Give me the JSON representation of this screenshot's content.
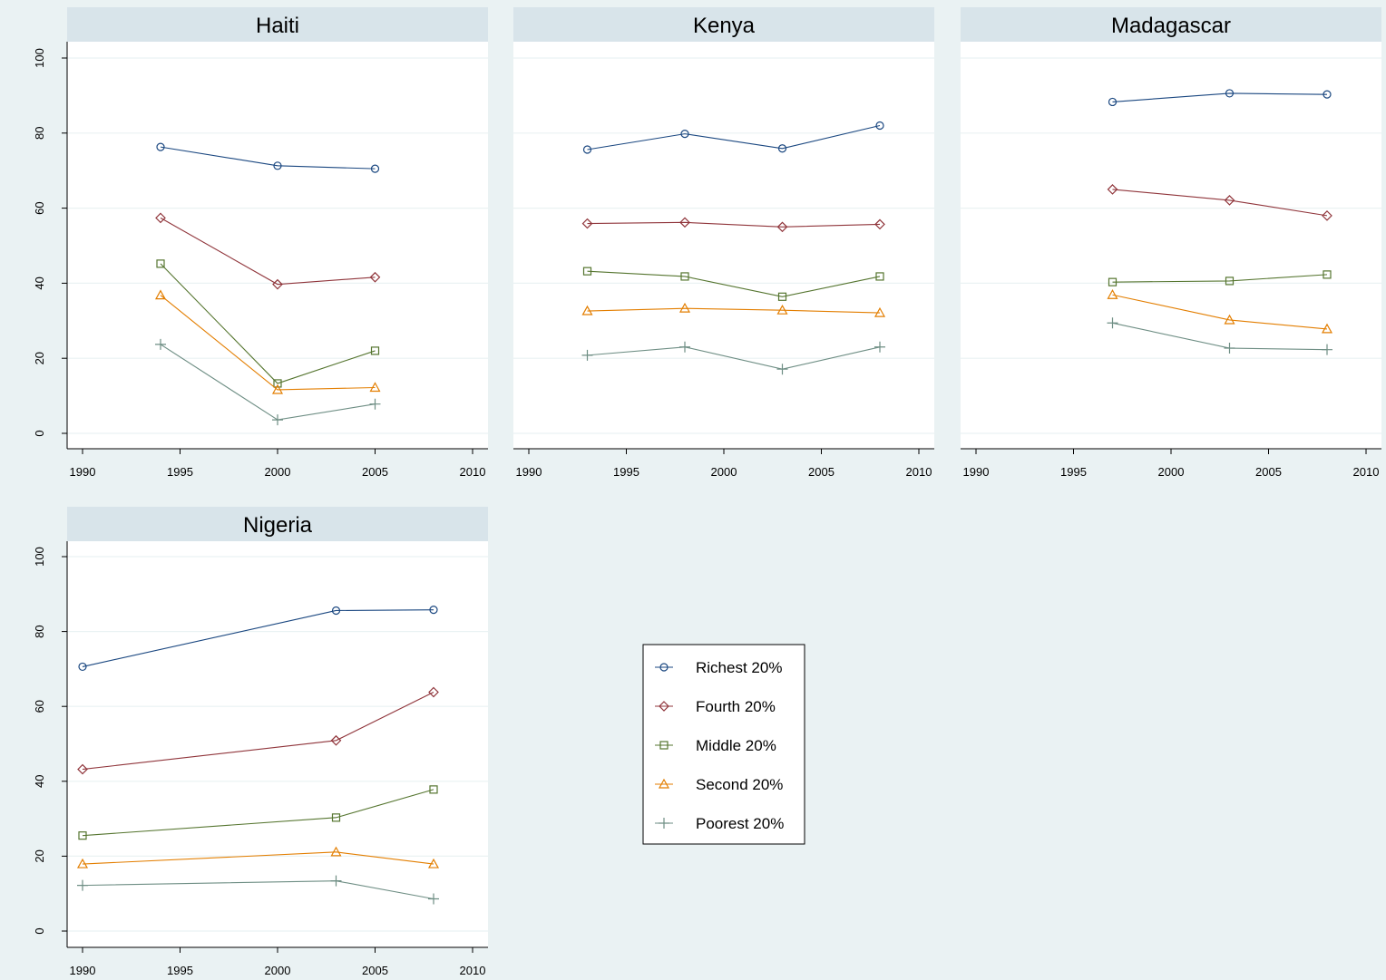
{
  "chart_data": {
    "type": "line",
    "layout": "small-multiples",
    "xlim": [
      1990,
      2010
    ],
    "ylim": [
      0,
      100
    ],
    "xticks": [
      1990,
      1995,
      2000,
      2005,
      2010
    ],
    "yticks": [
      0,
      20,
      40,
      60,
      80,
      100
    ],
    "grid": true,
    "legend_position": "bottom-center",
    "series_styles": [
      {
        "name": "Richest 20%",
        "color": "#1a4780",
        "marker": "circle"
      },
      {
        "name": "Fourth 20%",
        "color": "#90353b",
        "marker": "diamond"
      },
      {
        "name": "Middle 20%",
        "color": "#55752f",
        "marker": "square"
      },
      {
        "name": "Second 20%",
        "color": "#e37e00",
        "marker": "triangle"
      },
      {
        "name": "Poorest 20%",
        "color": "#6e8e84",
        "marker": "plus"
      }
    ],
    "panels": [
      {
        "title": "Haiti",
        "series": [
          {
            "name": "Richest 20%",
            "x": [
              1994,
              2000,
              2005
            ],
            "y": [
              76.3,
              71.3,
              70.5
            ]
          },
          {
            "name": "Fourth 20%",
            "x": [
              1994,
              2000,
              2005
            ],
            "y": [
              57.4,
              39.7,
              41.6
            ]
          },
          {
            "name": "Middle 20%",
            "x": [
              1994,
              2000,
              2005
            ],
            "y": [
              45.2,
              13.3,
              22.0
            ]
          },
          {
            "name": "Second 20%",
            "x": [
              1994,
              2000,
              2005
            ],
            "y": [
              36.8,
              11.6,
              12.2
            ]
          },
          {
            "name": "Poorest 20%",
            "x": [
              1994,
              2000,
              2005
            ],
            "y": [
              23.7,
              3.6,
              7.8
            ]
          }
        ]
      },
      {
        "title": "Kenya",
        "series": [
          {
            "name": "Richest 20%",
            "x": [
              1993,
              1998,
              2003,
              2008
            ],
            "y": [
              75.6,
              79.8,
              75.9,
              82.0
            ]
          },
          {
            "name": "Fourth 20%",
            "x": [
              1993,
              1998,
              2003,
              2008
            ],
            "y": [
              55.9,
              56.2,
              55.0,
              55.7
            ]
          },
          {
            "name": "Middle 20%",
            "x": [
              1993,
              1998,
              2003,
              2008
            ],
            "y": [
              43.2,
              41.8,
              36.4,
              41.8
            ]
          },
          {
            "name": "Second 20%",
            "x": [
              1993,
              1998,
              2003,
              2008
            ],
            "y": [
              32.6,
              33.3,
              32.8,
              32.1
            ]
          },
          {
            "name": "Poorest 20%",
            "x": [
              1993,
              1998,
              2003,
              2008
            ],
            "y": [
              20.8,
              23.0,
              17.1,
              23.0
            ]
          }
        ]
      },
      {
        "title": "Madagascar",
        "series": [
          {
            "name": "Richest 20%",
            "x": [
              1997,
              2003,
              2008
            ],
            "y": [
              88.3,
              90.6,
              90.3
            ]
          },
          {
            "name": "Fourth 20%",
            "x": [
              1997,
              2003,
              2008
            ],
            "y": [
              65.0,
              62.1,
              58.0
            ]
          },
          {
            "name": "Middle 20%",
            "x": [
              1997,
              2003,
              2008
            ],
            "y": [
              40.3,
              40.6,
              42.3
            ]
          },
          {
            "name": "Second 20%",
            "x": [
              1997,
              2003,
              2008
            ],
            "y": [
              36.9,
              30.2,
              27.8
            ]
          },
          {
            "name": "Poorest 20%",
            "x": [
              1997,
              2003,
              2008
            ],
            "y": [
              29.4,
              22.7,
              22.3
            ]
          }
        ]
      },
      {
        "title": "Nigeria",
        "series": [
          {
            "name": "Richest 20%",
            "x": [
              1990,
              2003,
              2008
            ],
            "y": [
              70.6,
              85.6,
              85.8
            ]
          },
          {
            "name": "Fourth 20%",
            "x": [
              1990,
              2003,
              2008
            ],
            "y": [
              43.2,
              50.9,
              63.8
            ]
          },
          {
            "name": "Middle 20%",
            "x": [
              1990,
              2003,
              2008
            ],
            "y": [
              25.5,
              30.3,
              37.8
            ]
          },
          {
            "name": "Second 20%",
            "x": [
              1990,
              2003,
              2008
            ],
            "y": [
              17.9,
              21.1,
              17.9
            ]
          },
          {
            "name": "Poorest 20%",
            "x": [
              1990,
              2003,
              2008
            ],
            "y": [
              12.2,
              13.4,
              8.6
            ]
          }
        ]
      }
    ]
  }
}
